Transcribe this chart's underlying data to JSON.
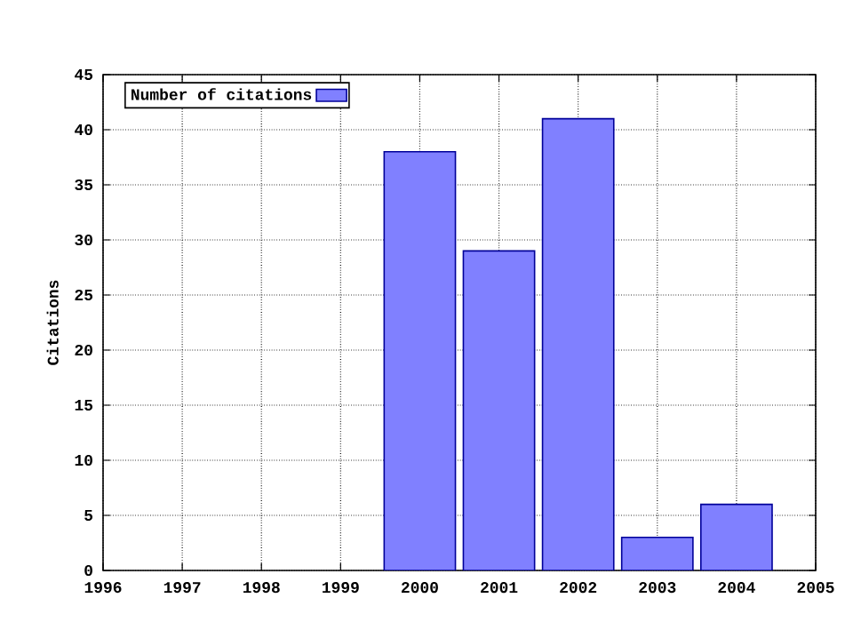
{
  "chart_data": {
    "type": "bar",
    "ylabel": "Citations",
    "x": [
      2000,
      2001,
      2002,
      2003,
      2004
    ],
    "series": [
      {
        "name": "Number of citations",
        "color": "#8080ff",
        "values": [
          38,
          29,
          41,
          3,
          6
        ]
      }
    ],
    "xlim": [
      1996,
      2005
    ],
    "xticks": [
      1996,
      1997,
      1998,
      1999,
      2000,
      2001,
      2002,
      2003,
      2004,
      2005
    ],
    "ylim": [
      0,
      45
    ],
    "yticks": [
      0,
      5,
      10,
      15,
      20,
      25,
      30,
      35,
      40,
      45
    ],
    "grid": true,
    "legend": "top left"
  }
}
